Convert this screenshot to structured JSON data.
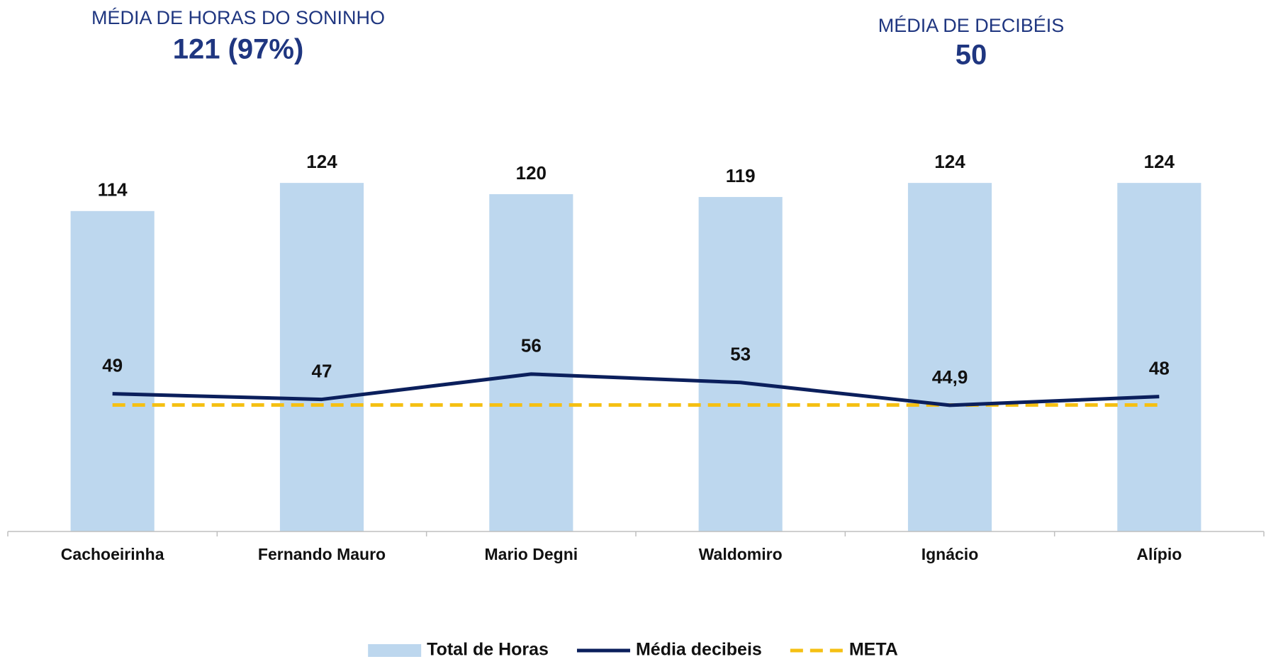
{
  "chart_data": {
    "type": "bar",
    "kpis": [
      {
        "label": "MÉDIA DE HORAS DO SONINHO",
        "value": "121 (97%)"
      },
      {
        "label": "MÉDIA DE DECIBÉIS",
        "value": "50"
      }
    ],
    "categories": [
      "Cachoeirinha",
      "Fernando Mauro",
      "Mario Degni",
      "Waldomiro",
      "Ignácio",
      "Alípio"
    ],
    "series": [
      {
        "name": "Total de Horas",
        "type": "bar",
        "color": "#bdd7ee",
        "values": [
          114,
          124,
          120,
          119,
          124,
          124
        ]
      },
      {
        "name": "Média decibeis",
        "type": "line",
        "color": "#0b1f5c",
        "values": [
          49,
          47,
          56,
          53,
          44.9,
          48
        ],
        "value_labels": [
          "49",
          "47",
          "56",
          "53",
          "44,9",
          "48"
        ]
      },
      {
        "name": "META",
        "type": "line",
        "dashed": true,
        "color": "#f5c013",
        "values": [
          45,
          45,
          45,
          45,
          45,
          45
        ]
      }
    ],
    "ylim": [
      0,
      150
    ],
    "legend": "bottom"
  }
}
